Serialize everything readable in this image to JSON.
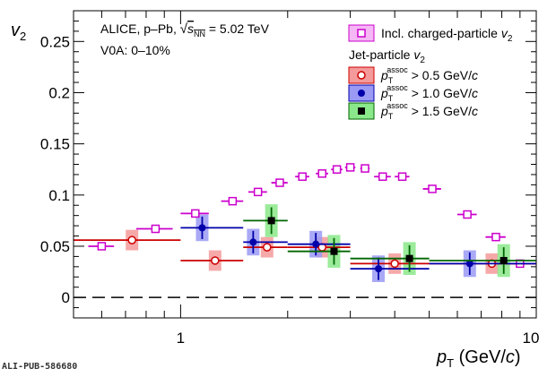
{
  "footer": {
    "pub_id": "ALI-PUB-586680"
  },
  "colors": {
    "incl": "#cc00cc",
    "incl_fill": "#f5b8f5",
    "red": "#cc0000",
    "red_box": "#f59a9a",
    "blue": "#0000aa",
    "blue_box": "#9a9af5",
    "green": "#006600",
    "green_box": "#8ae88a",
    "black": "#000000"
  },
  "chart_data": {
    "type": "scatter",
    "title": "",
    "xlabel": "p_T (GeV/c)",
    "ylabel": "v_2",
    "x_scale": "log",
    "xlim": [
      0.5,
      10
    ],
    "ylim": [
      -0.02,
      0.28
    ],
    "x_tick_labels": [
      "1",
      "10"
    ],
    "y_ticks": [
      0,
      0.05,
      0.1,
      0.15,
      0.2,
      0.25
    ],
    "y_tick_labels": [
      "0",
      "0.05",
      "0.1",
      "0.15",
      "0.2",
      "0.25"
    ],
    "grid": false,
    "annotations": [
      "ALICE, p–Pb, √s_NN = 5.02 TeV",
      "V0A: 0–10%"
    ],
    "legend": {
      "placement": "top-right",
      "header": "Jet-particle v_2",
      "entries": [
        "Incl. charged-particle v_2",
        "p_T^assoc > 0.5 GeV/c",
        "p_T^assoc > 1.0 GeV/c",
        "p_T^assoc > 1.5 GeV/c"
      ]
    },
    "series": [
      {
        "name": "Incl. charged-particle v_2",
        "color": "#cc00cc",
        "marker": "open-square",
        "points": [
          {
            "x": 0.6,
            "y": 0.05,
            "xerr": [
              0.55,
              0.65
            ]
          },
          {
            "x": 0.85,
            "y": 0.067,
            "xerr": [
              0.75,
              0.95
            ]
          },
          {
            "x": 1.1,
            "y": 0.082,
            "xerr": [
              1.0,
              1.2
            ]
          },
          {
            "x": 1.4,
            "y": 0.094,
            "xerr": [
              1.3,
              1.5
            ]
          },
          {
            "x": 1.65,
            "y": 0.103,
            "xerr": [
              1.55,
              1.75
            ]
          },
          {
            "x": 1.9,
            "y": 0.112,
            "xerr": [
              1.8,
              2.0
            ]
          },
          {
            "x": 2.2,
            "y": 0.118,
            "xerr": [
              2.1,
              2.3
            ]
          },
          {
            "x": 2.5,
            "y": 0.121,
            "xerr": [
              2.4,
              2.6
            ]
          },
          {
            "x": 2.75,
            "y": 0.125,
            "xerr": [
              2.65,
              2.85
            ]
          },
          {
            "x": 3.0,
            "y": 0.127,
            "xerr": [
              2.9,
              3.1
            ]
          },
          {
            "x": 3.3,
            "y": 0.126,
            "xerr": [
              3.2,
              3.4
            ]
          },
          {
            "x": 3.7,
            "y": 0.118,
            "xerr": [
              3.5,
              3.9
            ]
          },
          {
            "x": 4.2,
            "y": 0.118,
            "xerr": [
              4.0,
              4.4
            ]
          },
          {
            "x": 5.1,
            "y": 0.106,
            "xerr": [
              4.8,
              5.4
            ]
          },
          {
            "x": 6.4,
            "y": 0.081,
            "xerr": [
              6.0,
              6.8
            ]
          },
          {
            "x": 7.7,
            "y": 0.059,
            "xerr": [
              7.2,
              8.2
            ]
          },
          {
            "x": 9.0,
            "y": 0.033,
            "xerr": [
              8.0,
              10.0
            ]
          }
        ]
      },
      {
        "name": "p_T^assoc > 0.5 GeV/c",
        "color": "#cc0000",
        "marker": "open-circle",
        "points": [
          {
            "x": 0.73,
            "y": 0.056,
            "xerr": [
              0.5,
              1.0
            ]
          },
          {
            "x": 1.25,
            "y": 0.036,
            "xerr": [
              1.0,
              1.5
            ]
          },
          {
            "x": 1.75,
            "y": 0.049,
            "xerr": [
              1.5,
              2.0
            ]
          },
          {
            "x": 2.5,
            "y": 0.049,
            "xerr": [
              2.0,
              3.0
            ]
          },
          {
            "x": 4.0,
            "y": 0.033,
            "xerr": [
              3.0,
              5.0
            ]
          },
          {
            "x": 7.5,
            "y": 0.033,
            "xerr": [
              5.0,
              10.0
            ]
          }
        ]
      },
      {
        "name": "p_T^assoc > 1.0 GeV/c",
        "color": "#0000aa",
        "marker": "filled-circle",
        "points": [
          {
            "x": 1.15,
            "y": 0.068,
            "xerr": [
              1.0,
              1.5
            ]
          },
          {
            "x": 1.6,
            "y": 0.054,
            "xerr": [
              1.5,
              2.0
            ]
          },
          {
            "x": 2.4,
            "y": 0.052,
            "xerr": [
              2.0,
              3.0
            ]
          },
          {
            "x": 3.6,
            "y": 0.028,
            "xerr": [
              3.0,
              5.0
            ]
          },
          {
            "x": 6.5,
            "y": 0.033,
            "xerr": [
              5.0,
              10.0
            ]
          }
        ]
      },
      {
        "name": "p_T^assoc > 1.5 GeV/c",
        "color": "#006600",
        "marker": "filled-square",
        "points": [
          {
            "x": 1.8,
            "y": 0.075,
            "xerr": [
              1.5,
              2.0
            ]
          },
          {
            "x": 2.7,
            "y": 0.045,
            "xerr": [
              2.0,
              3.0
            ]
          },
          {
            "x": 4.4,
            "y": 0.038,
            "xerr": [
              3.0,
              5.0
            ]
          },
          {
            "x": 8.1,
            "y": 0.036,
            "xerr": [
              5.0,
              10.0
            ]
          }
        ]
      }
    ]
  }
}
